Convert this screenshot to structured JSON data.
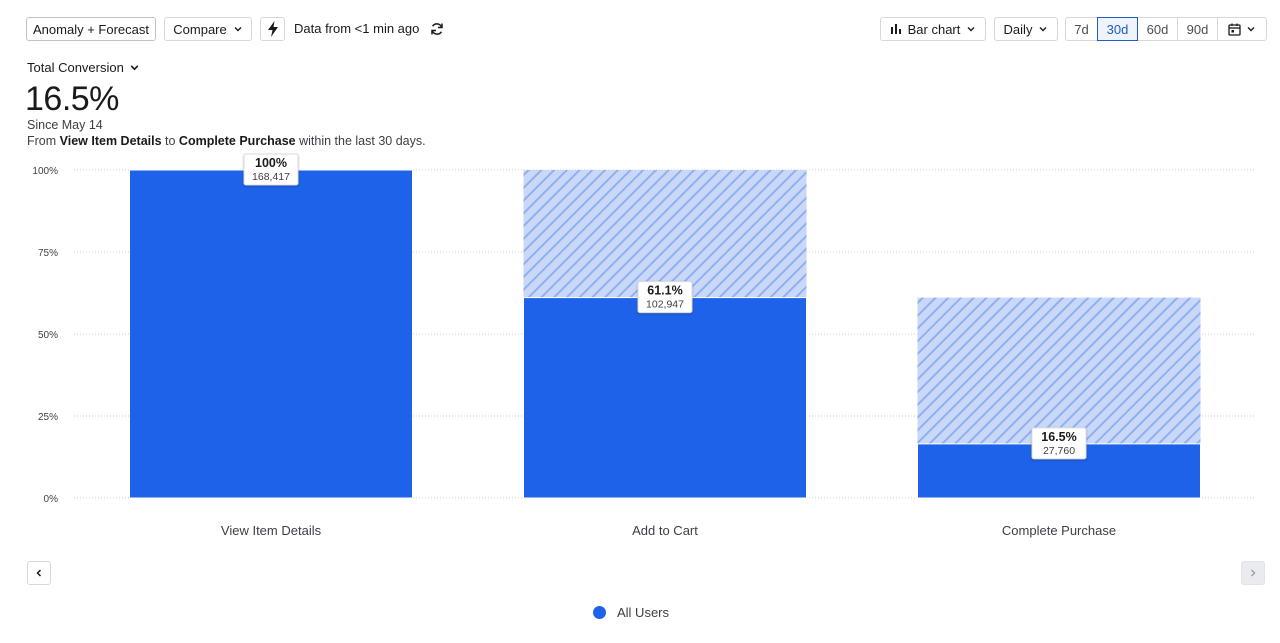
{
  "toolbar": {
    "anomaly_label": "Anomaly + Forecast",
    "compare_label": "Compare",
    "data_from": "Data from <1 min ago",
    "chart_type_label": "Bar chart",
    "interval_label": "Daily",
    "ranges": [
      "7d",
      "30d",
      "60d",
      "90d"
    ],
    "active_range": "30d"
  },
  "metric": {
    "selector_label": "Total Conversion",
    "value": "16.5%",
    "since": "Since May 14",
    "desc_prefix": "From ",
    "desc_from": "View Item Details",
    "desc_to_word": " to ",
    "desc_to": "Complete Purchase",
    "desc_suffix": " within the last 30 days."
  },
  "legend": {
    "label": "All Users",
    "color": "#1f62ea"
  },
  "chart_data": {
    "type": "bar",
    "categories": [
      "View Item Details",
      "Add to Cart",
      "Complete Purchase"
    ],
    "series": [
      {
        "name": "All Users",
        "values": [
          100,
          61.1,
          16.5
        ],
        "counts": [
          "168,417",
          "102,947",
          "27,760"
        ]
      }
    ],
    "value_labels": [
      "100%",
      "61.1%",
      "16.5%"
    ],
    "dropoff_from": [
      null,
      100,
      61.1
    ],
    "ylim": [
      0,
      100
    ],
    "yticks": [
      0,
      25,
      50,
      75,
      100
    ],
    "ytick_labels": [
      "0%",
      "25%",
      "50%",
      "75%",
      "100%"
    ],
    "grid": true,
    "legend_position": "bottom-center",
    "bar_color": "#1f62ea",
    "dropoff_color": "#a9c2f4"
  }
}
